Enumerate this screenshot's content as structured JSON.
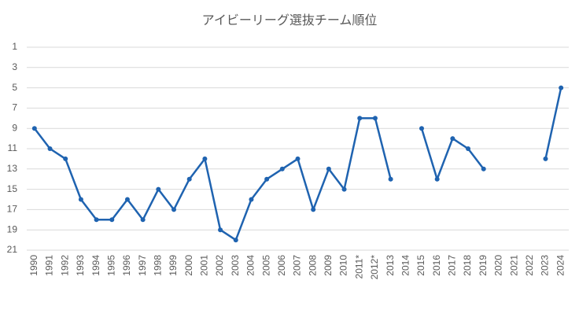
{
  "chart_data": {
    "type": "line",
    "title": "アイビーリーグ選抜チーム順位",
    "categories": [
      "1990",
      "1991",
      "1992",
      "1993",
      "1994",
      "1995",
      "1996",
      "1997",
      "1998",
      "1999",
      "2000",
      "2001",
      "2002",
      "2003",
      "2004",
      "2005",
      "2006",
      "2007",
      "2008",
      "2009",
      "2010",
      "2011*",
      "2012*",
      "2013",
      "2014",
      "2015",
      "2016",
      "2017",
      "2018",
      "2019",
      "2020",
      "2021",
      "2022",
      "2023",
      "2024"
    ],
    "series": [
      {
        "color": "#1f63b0",
        "values": [
          9,
          11,
          12,
          16,
          18,
          18,
          16,
          18,
          15,
          17,
          14,
          12,
          19,
          20,
          16,
          14,
          13,
          12,
          17,
          13,
          15,
          8,
          8,
          14,
          null,
          9,
          14,
          10,
          11,
          13,
          null,
          null,
          null,
          12,
          5
        ]
      }
    ],
    "ylim": [
      1,
      21
    ],
    "inverted": true,
    "yticks": [
      1,
      3,
      5,
      7,
      9,
      11,
      13,
      15,
      17,
      19,
      21
    ],
    "grid": true
  }
}
